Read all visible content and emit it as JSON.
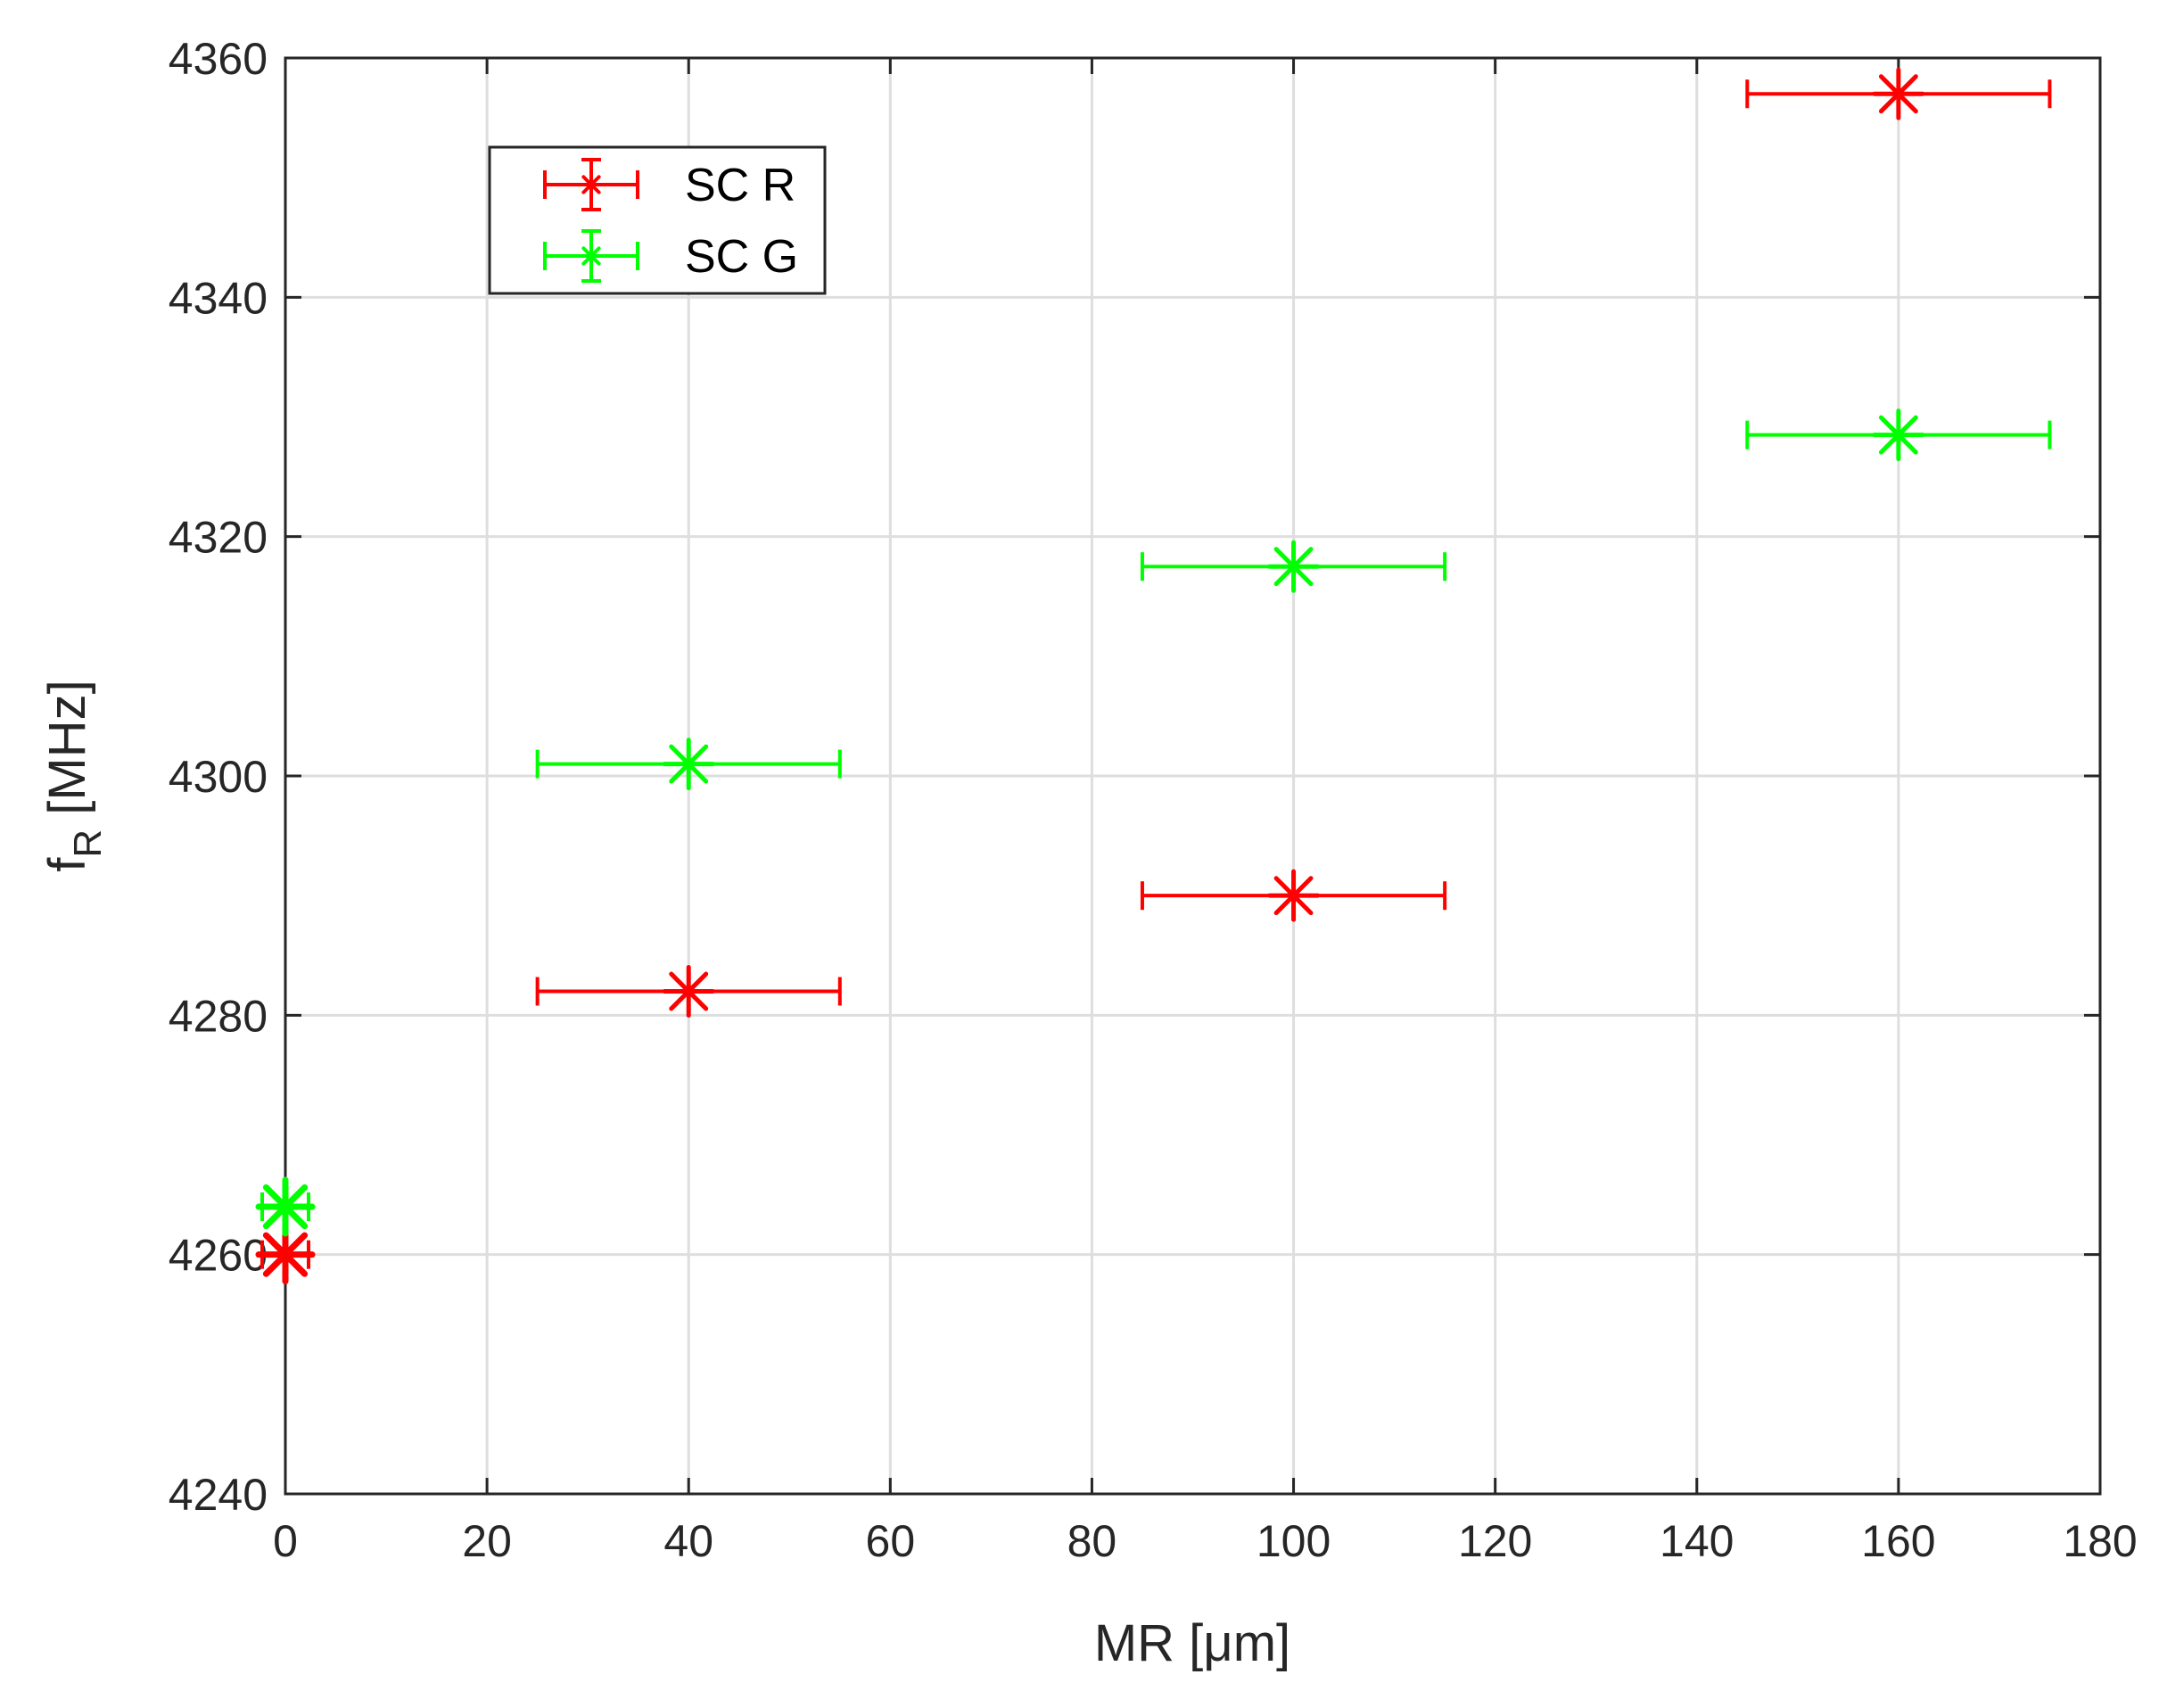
{
  "chart_data": {
    "type": "scatter",
    "xlabel": "MR [μm]",
    "ylabel": "f",
    "ylabel_sub": "R",
    "ylabel_unit": " [MHz]",
    "xlim": [
      0,
      180
    ],
    "ylim": [
      4240,
      4360
    ],
    "xticks": [
      0,
      20,
      40,
      60,
      80,
      100,
      120,
      140,
      160,
      180
    ],
    "yticks": [
      4240,
      4260,
      4280,
      4300,
      4320,
      4340,
      4360
    ],
    "xtick_labels": [
      "0",
      "20",
      "40",
      "60",
      "80",
      "100",
      "120",
      "140",
      "160",
      "180"
    ],
    "ytick_labels": [
      "4240",
      "4260",
      "4280",
      "4300",
      "4320",
      "4340",
      "4360"
    ],
    "grid": true,
    "legend_position": "top-left",
    "series": [
      {
        "name": "SC R",
        "color": "#ff0000",
        "marker": "asterisk",
        "x": [
          0,
          40,
          100,
          160
        ],
        "y": [
          4260,
          4282,
          4290,
          4357
        ],
        "xerr": [
          0,
          15,
          15,
          15
        ]
      },
      {
        "name": "SC G",
        "color": "#00ff00",
        "marker": "asterisk",
        "x": [
          0,
          40,
          100,
          160
        ],
        "y": [
          4264,
          4301,
          4317.5,
          4328.5
        ],
        "xerr": [
          0,
          15,
          15,
          15
        ]
      }
    ]
  }
}
